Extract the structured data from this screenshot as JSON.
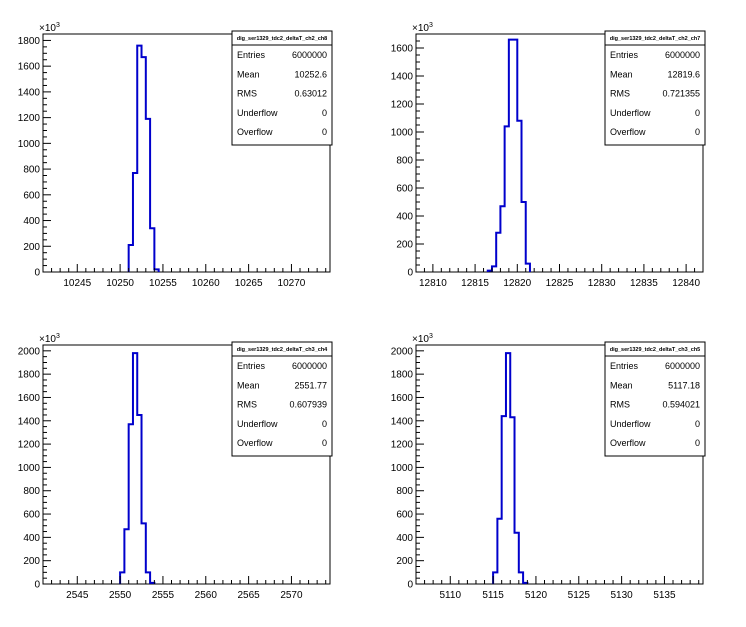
{
  "chart_data": [
    {
      "type": "histogram",
      "title": "",
      "xlabel": "",
      "ylabel": "",
      "y_multiplier": "×10³",
      "y_multiplier_base": "×10",
      "y_multiplier_exp": "3",
      "xlim": [
        10241,
        10274.5
      ],
      "ylim": [
        0,
        1850
      ],
      "xticks": [
        10245,
        10250,
        10255,
        10260,
        10265,
        10270
      ],
      "yticks": [
        0,
        200,
        400,
        600,
        800,
        1000,
        1200,
        1400,
        1600,
        1800
      ],
      "bin_width": 0.5,
      "bins_start": [
        10251.0,
        10251.5,
        10252.0,
        10252.5,
        10253.0,
        10253.5,
        10254.0
      ],
      "values": [
        210,
        770,
        1760,
        1670,
        1190,
        340,
        20
      ],
      "grid": false,
      "stats": {
        "title": "dig_ser1329_tdc2_deltaT_ch2_ch8",
        "rows": [
          {
            "label": "Entries",
            "value": "6000000"
          },
          {
            "label": "Mean",
            "value": "10252.6"
          },
          {
            "label": "RMS",
            "value": "0.63012"
          },
          {
            "label": "Underflow",
            "value": "0"
          },
          {
            "label": "Overflow",
            "value": "0"
          }
        ]
      }
    },
    {
      "type": "histogram",
      "title": "",
      "xlabel": "",
      "ylabel": "",
      "y_multiplier": "×10³",
      "y_multiplier_base": "×10",
      "y_multiplier_exp": "3",
      "xlim": [
        12808,
        12842
      ],
      "ylim": [
        0,
        1700
      ],
      "xticks": [
        12810,
        12815,
        12820,
        12825,
        12830,
        12835,
        12840
      ],
      "yticks": [
        0,
        200,
        400,
        600,
        800,
        1000,
        1200,
        1400,
        1600
      ],
      "bin_width": 0.5,
      "bins_start": [
        12816.5,
        12817.0,
        12817.5,
        12818.0,
        12818.5,
        12819.0,
        12819.5,
        12820.0,
        12820.5,
        12821.0
      ],
      "values": [
        10,
        40,
        280,
        470,
        1040,
        1660,
        1660,
        1080,
        500,
        60
      ],
      "grid": false,
      "stats": {
        "title": "dig_ser1329_tdc2_deltaT_ch2_ch7",
        "rows": [
          {
            "label": "Entries",
            "value": "6000000"
          },
          {
            "label": "Mean",
            "value": "12819.6"
          },
          {
            "label": "RMS",
            "value": "0.721355"
          },
          {
            "label": "Underflow",
            "value": "0"
          },
          {
            "label": "Overflow",
            "value": "0"
          }
        ]
      }
    },
    {
      "type": "histogram",
      "title": "",
      "xlabel": "",
      "ylabel": "",
      "y_multiplier": "×10³",
      "y_multiplier_base": "×10",
      "y_multiplier_exp": "3",
      "xlim": [
        2541,
        2574.5
      ],
      "ylim": [
        0,
        2050
      ],
      "xticks": [
        2545,
        2550,
        2555,
        2560,
        2565,
        2570
      ],
      "yticks": [
        0,
        200,
        400,
        600,
        800,
        1000,
        1200,
        1400,
        1600,
        1800,
        2000
      ],
      "bin_width": 0.5,
      "bins_start": [
        2550.0,
        2550.5,
        2551.0,
        2551.5,
        2552.0,
        2552.5,
        2553.0,
        2553.5
      ],
      "values": [
        100,
        470,
        1370,
        1980,
        1450,
        520,
        100,
        10
      ],
      "grid": false,
      "stats": {
        "title": "dig_ser1329_tdc2_deltaT_ch3_ch4",
        "rows": [
          {
            "label": "Entries",
            "value": "6000000"
          },
          {
            "label": "Mean",
            "value": "2551.77"
          },
          {
            "label": "RMS",
            "value": "0.607939"
          },
          {
            "label": "Underflow",
            "value": "0"
          },
          {
            "label": "Overflow",
            "value": "0"
          }
        ]
      }
    },
    {
      "type": "histogram",
      "title": "",
      "xlabel": "",
      "ylabel": "",
      "y_multiplier": "×10³",
      "y_multiplier_base": "×10",
      "y_multiplier_exp": "3",
      "xlim": [
        5106,
        5139.5
      ],
      "ylim": [
        0,
        2050
      ],
      "xticks": [
        5110,
        5115,
        5120,
        5125,
        5130,
        5135
      ],
      "yticks": [
        0,
        200,
        400,
        600,
        800,
        1000,
        1200,
        1400,
        1600,
        1800,
        2000
      ],
      "bin_width": 0.5,
      "bins_start": [
        5115.0,
        5115.5,
        5116.0,
        5116.5,
        5117.0,
        5117.5,
        5118.0,
        5118.5
      ],
      "values": [
        100,
        560,
        1440,
        1980,
        1430,
        440,
        100,
        10
      ],
      "grid": false,
      "stats": {
        "title": "dig_ser1329_tdc2_deltaT_ch3_ch5",
        "rows": [
          {
            "label": "Entries",
            "value": "6000000"
          },
          {
            "label": "Mean",
            "value": "5117.18"
          },
          {
            "label": "RMS",
            "value": "0.594021"
          },
          {
            "label": "Underflow",
            "value": "0"
          },
          {
            "label": "Overflow",
            "value": "0"
          }
        ]
      }
    }
  ],
  "colors": {
    "histogram_line": "#0000cc",
    "axis": "#000000",
    "background": "#ffffff"
  }
}
